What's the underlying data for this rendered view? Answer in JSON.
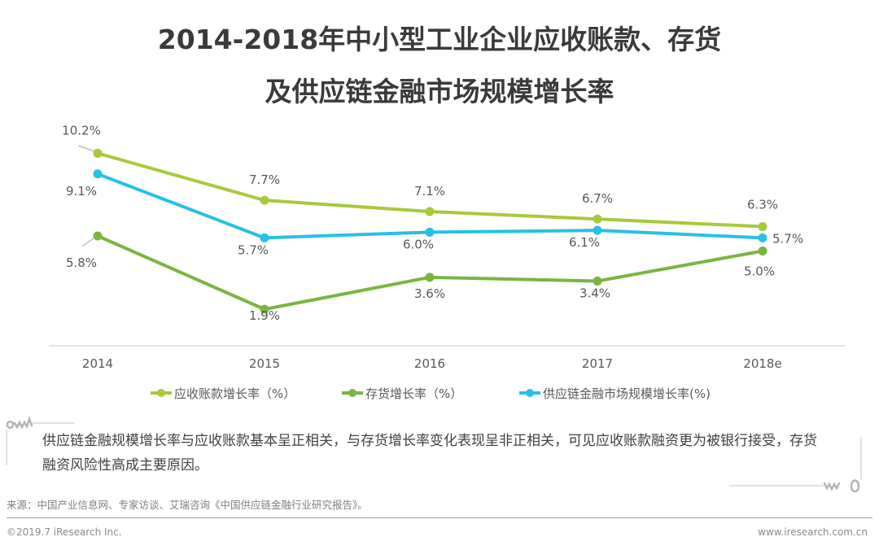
{
  "title": {
    "line1": "2014-2018年中小型工业企业应收账款、存货",
    "line2": "及供应链金融市场规模增长率"
  },
  "chart_data": {
    "type": "line",
    "title": "2014-2018年中小型工业企业应收账款、存货及供应链金融市场规模增长率",
    "xlabel": "",
    "ylabel": "",
    "categories": [
      "2014",
      "2015",
      "2016",
      "2017",
      "2018e"
    ],
    "ylim": [
      0,
      11
    ],
    "grid": false,
    "legend_position": "bottom",
    "series": [
      {
        "name": "应收账款增长率（%）",
        "color": "#a8c93a",
        "values": [
          10.2,
          7.7,
          7.1,
          6.7,
          6.3
        ],
        "labels": [
          "10.2%",
          "7.7%",
          "7.1%",
          "6.7%",
          "6.3%"
        ]
      },
      {
        "name": "存货增长率（%）",
        "color": "#7ab540",
        "values": [
          5.8,
          1.9,
          3.6,
          3.4,
          5.0
        ],
        "labels": [
          "5.8%",
          "1.9%",
          "3.6%",
          "3.4%",
          "5.0%"
        ]
      },
      {
        "name": "供应链金融市场规模增长率(%)",
        "color": "#27c0e8",
        "values": [
          9.1,
          5.7,
          6.0,
          6.1,
          5.7
        ],
        "labels": [
          "9.1%",
          "5.7%",
          "6.0%",
          "6.1%",
          "5.7%"
        ]
      }
    ]
  },
  "note": "供应链金融规模增长率与应收账款基本呈正相关，与存货增长率变化表现呈非正相关，可见应收账款融资更为被银行接受，存货融资风险性高成主要原因。",
  "footer": {
    "source": "来源：中国产业信息网、专家访谈、艾瑞咨询《中国供应链金融行业研究报告》。",
    "copyright": "©2019.7 iResearch Inc.",
    "website": "www.iresearch.com.cn"
  }
}
